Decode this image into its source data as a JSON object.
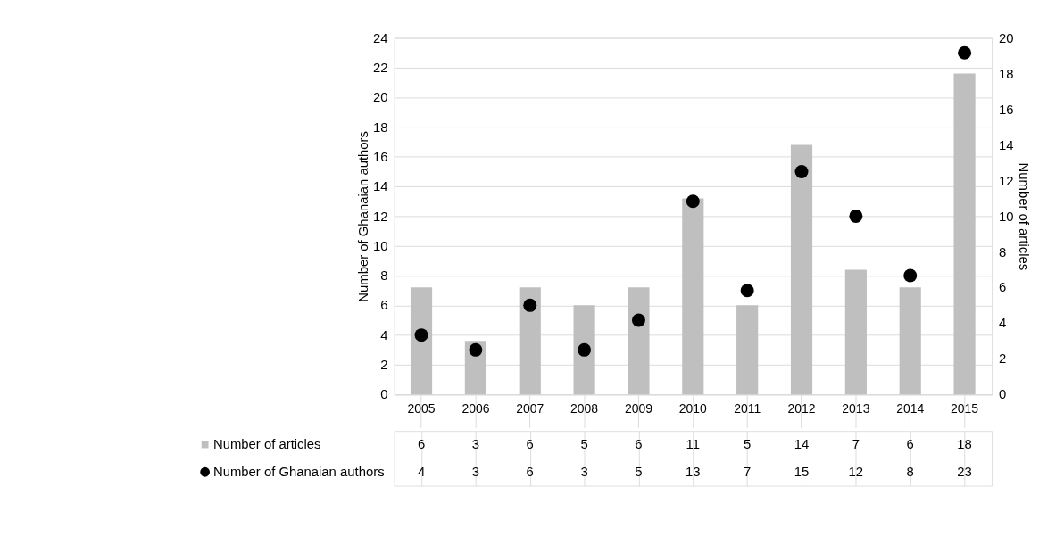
{
  "chart_data": {
    "type": "bar",
    "categories": [
      "2005",
      "2006",
      "2007",
      "2008",
      "2009",
      "2010",
      "2011",
      "2012",
      "2013",
      "2014",
      "2015"
    ],
    "series": [
      {
        "name": "Number of articles",
        "axis": "y2",
        "color": "#bfbfbf",
        "values": [
          6,
          3,
          6,
          5,
          6,
          11,
          5,
          14,
          7,
          6,
          18
        ]
      },
      {
        "name": "Number of Ghanaian authors",
        "type": "scatter",
        "color": "#000000",
        "values": [
          4,
          3,
          6,
          3,
          5,
          13,
          7,
          15,
          12,
          8,
          23
        ]
      }
    ],
    "ylabel": "Number of Ghanaian authors",
    "y2label": "Number of articles",
    "ylim": [
      0,
      24
    ],
    "yticks": [
      0,
      2,
      4,
      6,
      8,
      10,
      12,
      14,
      16,
      18,
      20,
      22,
      24
    ],
    "y2lim": [
      0,
      20
    ],
    "y2ticks": [
      0,
      2,
      4,
      6,
      8,
      10,
      12,
      14,
      16,
      18,
      20
    ],
    "grid": "y",
    "marker": "circle",
    "data_labels": true,
    "legend": "bottom"
  }
}
